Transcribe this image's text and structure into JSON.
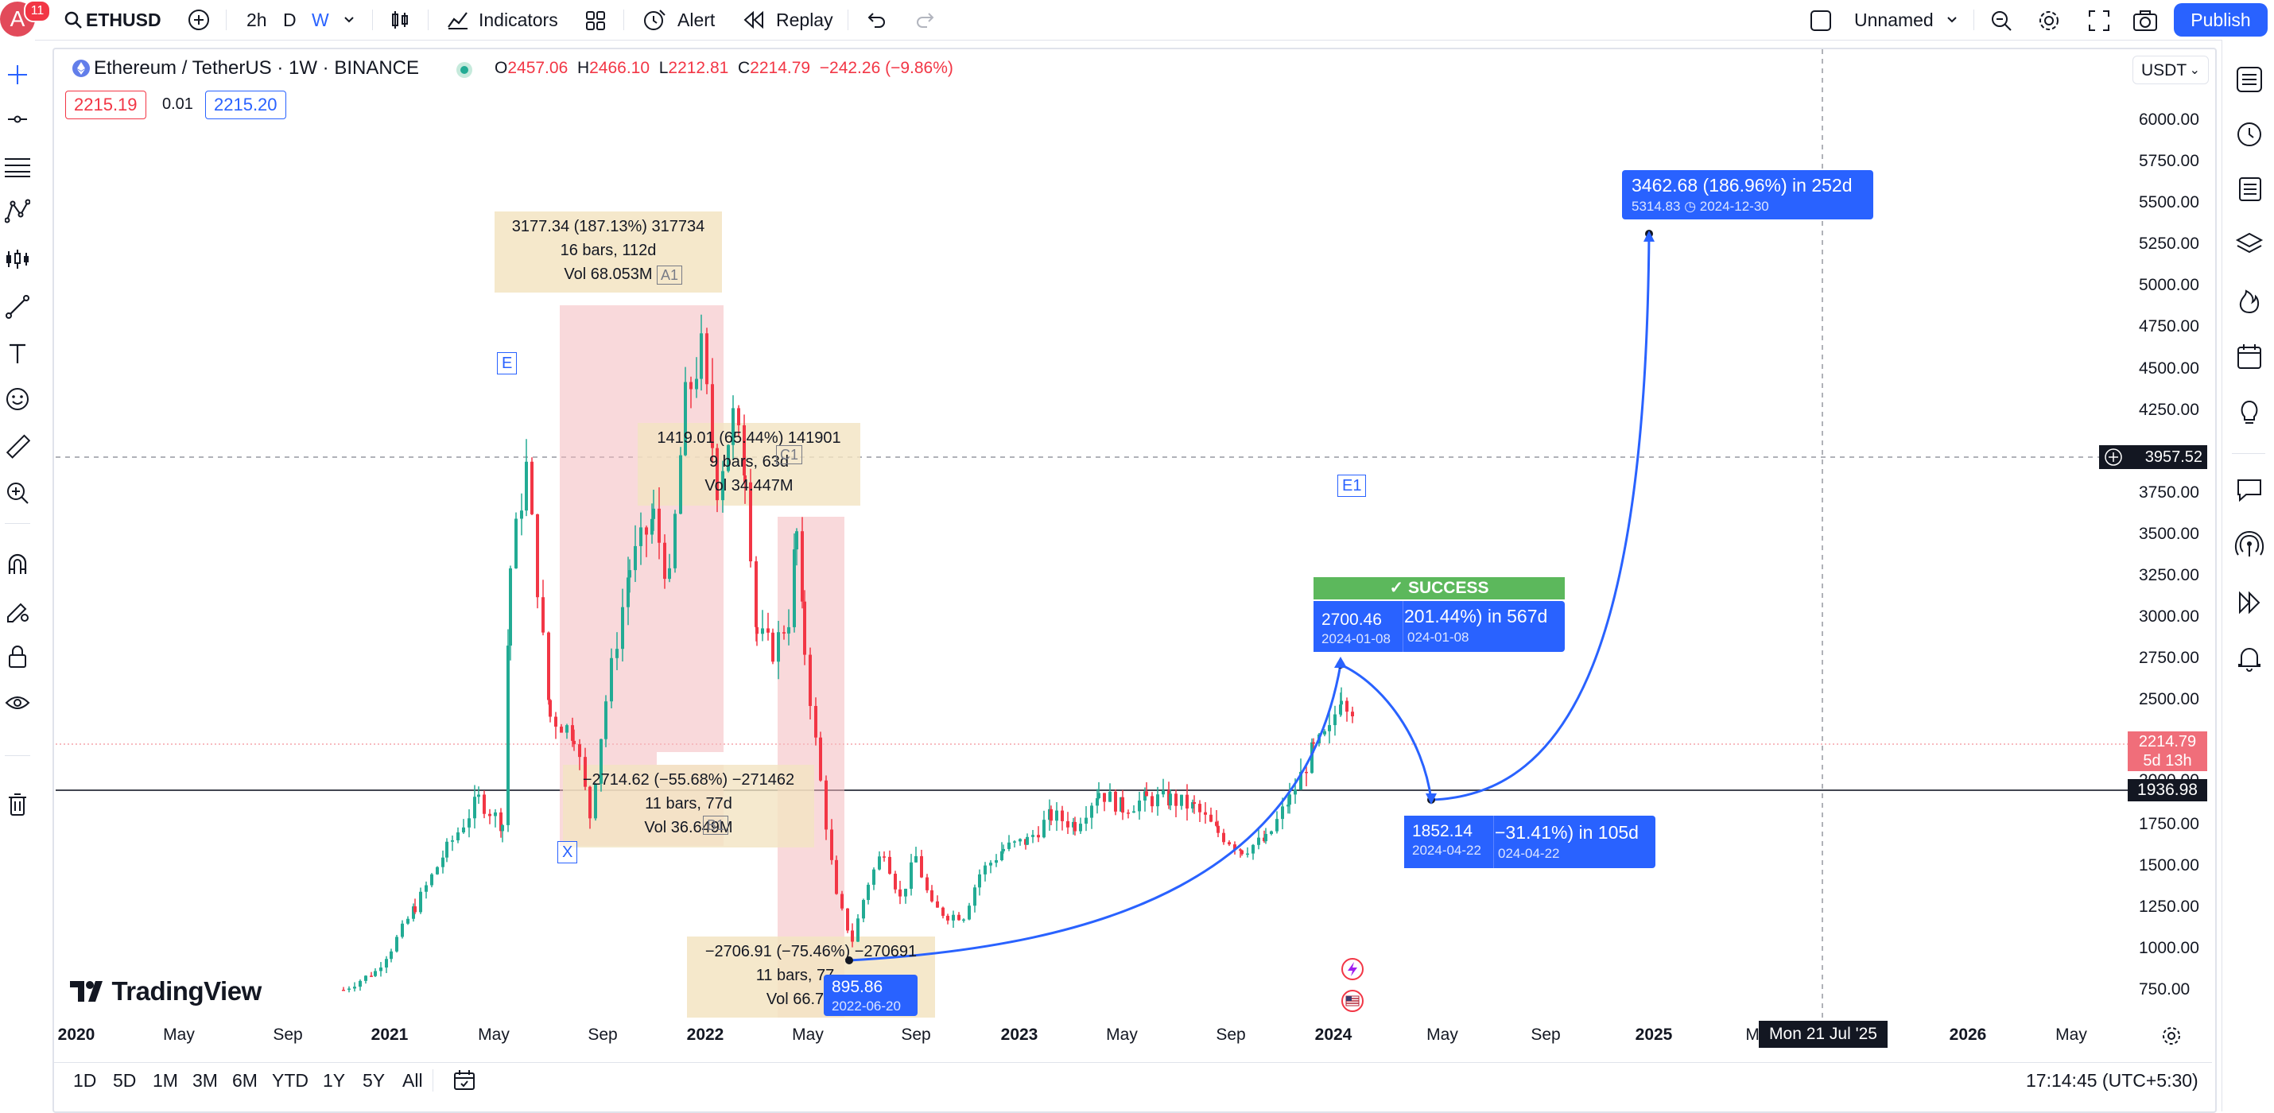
{
  "topbar": {
    "avatar_letter": "A",
    "notification_count": "11",
    "symbol": "ETHUSD",
    "intervals": [
      "2h",
      "D",
      "W"
    ],
    "active_interval": "W",
    "indicators_label": "Indicators",
    "alert_label": "Alert",
    "replay_label": "Replay",
    "layout_name": "Unnamed",
    "publish_label": "Publish"
  },
  "legend": {
    "title": "Ethereum / TetherUS · 1W · BINANCE",
    "o_label": "O",
    "o_value": "2457.06",
    "h_label": "H",
    "h_value": "2466.10",
    "l_label": "L",
    "l_value": "2212.81",
    "c_label": "C",
    "c_value": "2214.79",
    "change": "−242.26 (−9.86%)",
    "sell_price": "2215.19",
    "spread": "0.01",
    "buy_price": "2215.20"
  },
  "price_axis": {
    "unit": "USDT",
    "ticks": [
      "6000.00",
      "5750.00",
      "5500.00",
      "5250.00",
      "5000.00",
      "4750.00",
      "4500.00",
      "4250.00",
      "3750.00",
      "3500.00",
      "3250.00",
      "3000.00",
      "2750.00",
      "2500.00",
      "1750.00",
      "1500.00",
      "1250.00",
      "1000.00",
      "750.00"
    ],
    "crosshair_price": "3957.52",
    "last_price": "2214.79",
    "countdown": "5d 13h",
    "hline_price": "1936.98",
    "hidden_tick": "2000.00"
  },
  "time_axis": {
    "ticks": [
      "2020",
      "May",
      "Sep",
      "2021",
      "May",
      "Sep",
      "2022",
      "May",
      "Sep",
      "2023",
      "May",
      "Sep",
      "2024",
      "May",
      "Sep",
      "2025",
      "Ma",
      "2026",
      "May"
    ],
    "crosshair_date": "Mon 21 Jul '25"
  },
  "drawings": {
    "box_a1": {
      "line1": "3177.34 (187.13%) 317734",
      "line2": "16 bars, 112d",
      "line3": "Vol 68.053M",
      "tag": "A1"
    },
    "box_c1": {
      "line1": "1419.01 (65.44%) 141901",
      "line2": "9 bars, 63d",
      "line3": "Vol 34.447M",
      "tag": "C1"
    },
    "box_b1": {
      "line1": "−2714.62 (−55.68%) −271462",
      "line2": "11 bars, 77d",
      "line3": "Vol 36.649M",
      "tag": "B1"
    },
    "box_d1": {
      "line1": "−2706.91 (−75.46%) −270691",
      "line2": "11 bars, 77",
      "line3": "Vol 66.7"
    },
    "tag_e": "E",
    "tag_x": "X",
    "tag_e1": "E1",
    "success_label": "✓ SUCCESS",
    "proj_1": {
      "main": "201.44%) in 567d",
      "sub": "024-01-08",
      "price": "2700.46",
      "date": "2024-01-08"
    },
    "proj_2": {
      "main": "−31.41%) in 105d",
      "sub": "024-04-22",
      "price": "1852.14",
      "date": "2024-04-22"
    },
    "proj_3": {
      "main": "3462.68 (186.96%) in 252d",
      "sub_price": "5314.83",
      "sub_date": "2024-12-30"
    },
    "low_label": {
      "price": "895.86",
      "date": "2022-06-20"
    }
  },
  "footer": {
    "ranges": [
      "1D",
      "5D",
      "1M",
      "3M",
      "6M",
      "YTD",
      "1Y",
      "5Y",
      "All"
    ],
    "clock": "17:14:45 (UTC+5:30)"
  },
  "watermark": "TradingView",
  "colors": {
    "accent": "#2962ff",
    "up": "#22ab94",
    "down": "#f23645",
    "box_tan": "#f5ead0",
    "box_red": "#f8c9cc",
    "success": "#5cb85c"
  }
}
